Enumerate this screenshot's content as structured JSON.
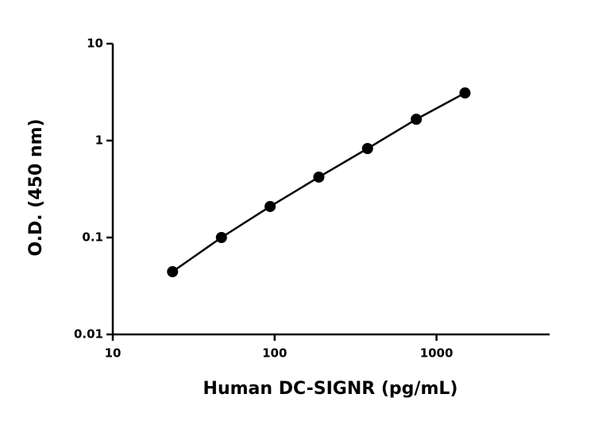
{
  "chart_data": {
    "type": "line",
    "x_label": "Human DC-SIGNR (pg/mL)",
    "y_label": "O.D. (450 nm)",
    "x": [
      23.4,
      46.9,
      93.75,
      187.5,
      375,
      750,
      1500
    ],
    "series": [
      {
        "color": "#000000",
        "values": [
          0.0444,
          0.1,
          0.209,
          0.42,
          0.828,
          1.66,
          3.1
        ]
      }
    ],
    "xlim": [
      10,
      5000
    ],
    "ylim": [
      0.01,
      10
    ],
    "xticks": [
      10,
      100,
      1000
    ],
    "yticks": [
      0.01,
      0.1,
      1,
      10
    ],
    "xscale": "log",
    "yscale": "log",
    "grid": false
  }
}
